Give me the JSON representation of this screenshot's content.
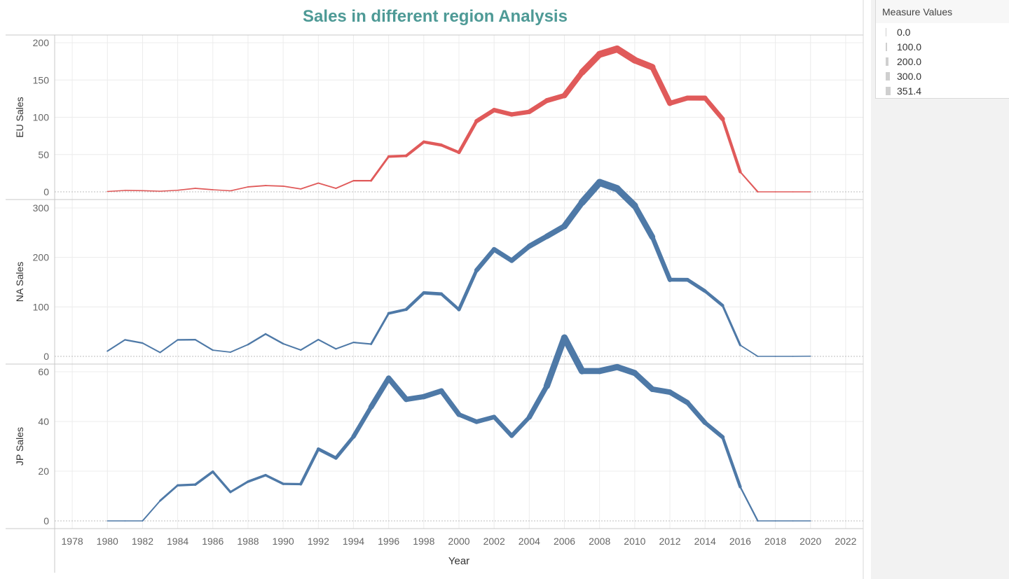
{
  "title": "Sales in different region Analysis",
  "colors": {
    "eu": "#e05a5a",
    "na": "#4e79a7",
    "jp": "#4e79a7",
    "title": "#4e9a96"
  },
  "legend": {
    "title": "Measure Values",
    "entries": [
      "0.0",
      "100.0",
      "200.0",
      "300.0",
      "351.4"
    ]
  },
  "chart_data": {
    "type": "line",
    "xlabel": "Year",
    "x_ticks": [
      "1978",
      "1980",
      "1982",
      "1984",
      "1986",
      "1988",
      "1990",
      "1992",
      "1994",
      "1996",
      "1998",
      "2000",
      "2002",
      "2004",
      "2006",
      "2008",
      "2010",
      "2012",
      "2014",
      "2016",
      "2018",
      "2020",
      "2022"
    ],
    "xlim": [
      1977,
      2023
    ],
    "size_encoding": {
      "field": "Measure Values",
      "range": [
        0,
        351.4
      ]
    },
    "panels": [
      {
        "name": "EU Sales",
        "ylabel": "EU Sales",
        "color": "#e05a5a",
        "ylim": [
          0,
          200
        ],
        "yticks": [
          0,
          50,
          100,
          150,
          200
        ],
        "x": [
          1980,
          1981,
          1982,
          1983,
          1984,
          1985,
          1986,
          1987,
          1988,
          1989,
          1990,
          1991,
          1992,
          1993,
          1994,
          1995,
          1996,
          1997,
          1998,
          1999,
          2000,
          2001,
          2002,
          2003,
          2004,
          2005,
          2006,
          2007,
          2008,
          2009,
          2010,
          2011,
          2012,
          2013,
          2014,
          2015,
          2016,
          2017,
          2018,
          2019,
          2020
        ],
        "y": [
          0.5,
          1.9,
          1.6,
          0.8,
          2.1,
          4.7,
          2.8,
          1.4,
          6.6,
          8.4,
          7.6,
          3.9,
          11.7,
          4.7,
          14.9,
          14.9,
          47.3,
          48.3,
          66.9,
          62.7,
          52.8,
          94.8,
          109.7,
          103.8,
          107.3,
          122.4,
          129.2,
          160.2,
          184.4,
          191.6,
          176.6,
          167.2,
          118.8,
          125.8,
          125.7,
          97.7,
          26.8,
          0.0,
          0.0,
          0.0,
          0.0
        ]
      },
      {
        "name": "NA Sales",
        "ylabel": "NA Sales",
        "color": "#4e79a7",
        "ylim": [
          0,
          360
        ],
        "yticks": [
          0,
          100,
          200,
          300
        ],
        "x": [
          1980,
          1981,
          1982,
          1983,
          1984,
          1985,
          1986,
          1987,
          1988,
          1989,
          1990,
          1991,
          1992,
          1993,
          1994,
          1995,
          1996,
          1997,
          1998,
          1999,
          2000,
          2001,
          2002,
          2003,
          2004,
          2005,
          2006,
          2007,
          2008,
          2009,
          2010,
          2011,
          2012,
          2013,
          2014,
          2015,
          2016,
          2017,
          2018,
          2019,
          2020
        ],
        "y": [
          10.6,
          33.4,
          26.9,
          7.8,
          33.3,
          33.7,
          12.5,
          8.5,
          23.9,
          45.2,
          25.5,
          12.8,
          33.9,
          15.1,
          28.2,
          24.8,
          86.8,
          94.8,
          128.4,
          126.1,
          94.5,
          173.9,
          216.2,
          193.6,
          222.6,
          242.6,
          263.1,
          311.1,
          351.4,
          338.9,
          304.2,
          241.2,
          154.9,
          154.8,
          131.9,
          102.8,
          22.7,
          0.0,
          0.0,
          0.0,
          0.3
        ]
      },
      {
        "name": "JP Sales",
        "ylabel": "JP Sales",
        "color": "#4e79a7",
        "ylim": [
          0,
          75
        ],
        "yticks": [
          0,
          20,
          40,
          60
        ],
        "x": [
          1980,
          1981,
          1982,
          1983,
          1984,
          1985,
          1986,
          1987,
          1988,
          1989,
          1990,
          1991,
          1992,
          1993,
          1994,
          1995,
          1996,
          1997,
          1998,
          1999,
          2000,
          2001,
          2002,
          2003,
          2004,
          2005,
          2006,
          2007,
          2008,
          2009,
          2010,
          2011,
          2012,
          2013,
          2014,
          2015,
          2016,
          2017,
          2018,
          2019,
          2020
        ],
        "y": [
          0.0,
          0.0,
          0.0,
          8.1,
          14.3,
          14.6,
          19.8,
          11.6,
          15.8,
          18.4,
          14.9,
          14.8,
          28.9,
          25.3,
          33.9,
          45.8,
          57.4,
          48.9,
          50.0,
          52.3,
          42.8,
          39.9,
          41.8,
          34.2,
          41.7,
          54.3,
          73.7,
          60.3,
          60.3,
          61.9,
          59.5,
          53.0,
          51.8,
          47.6,
          39.5,
          33.7,
          13.7,
          0.0,
          0.0,
          0.0,
          0.0
        ]
      }
    ]
  }
}
